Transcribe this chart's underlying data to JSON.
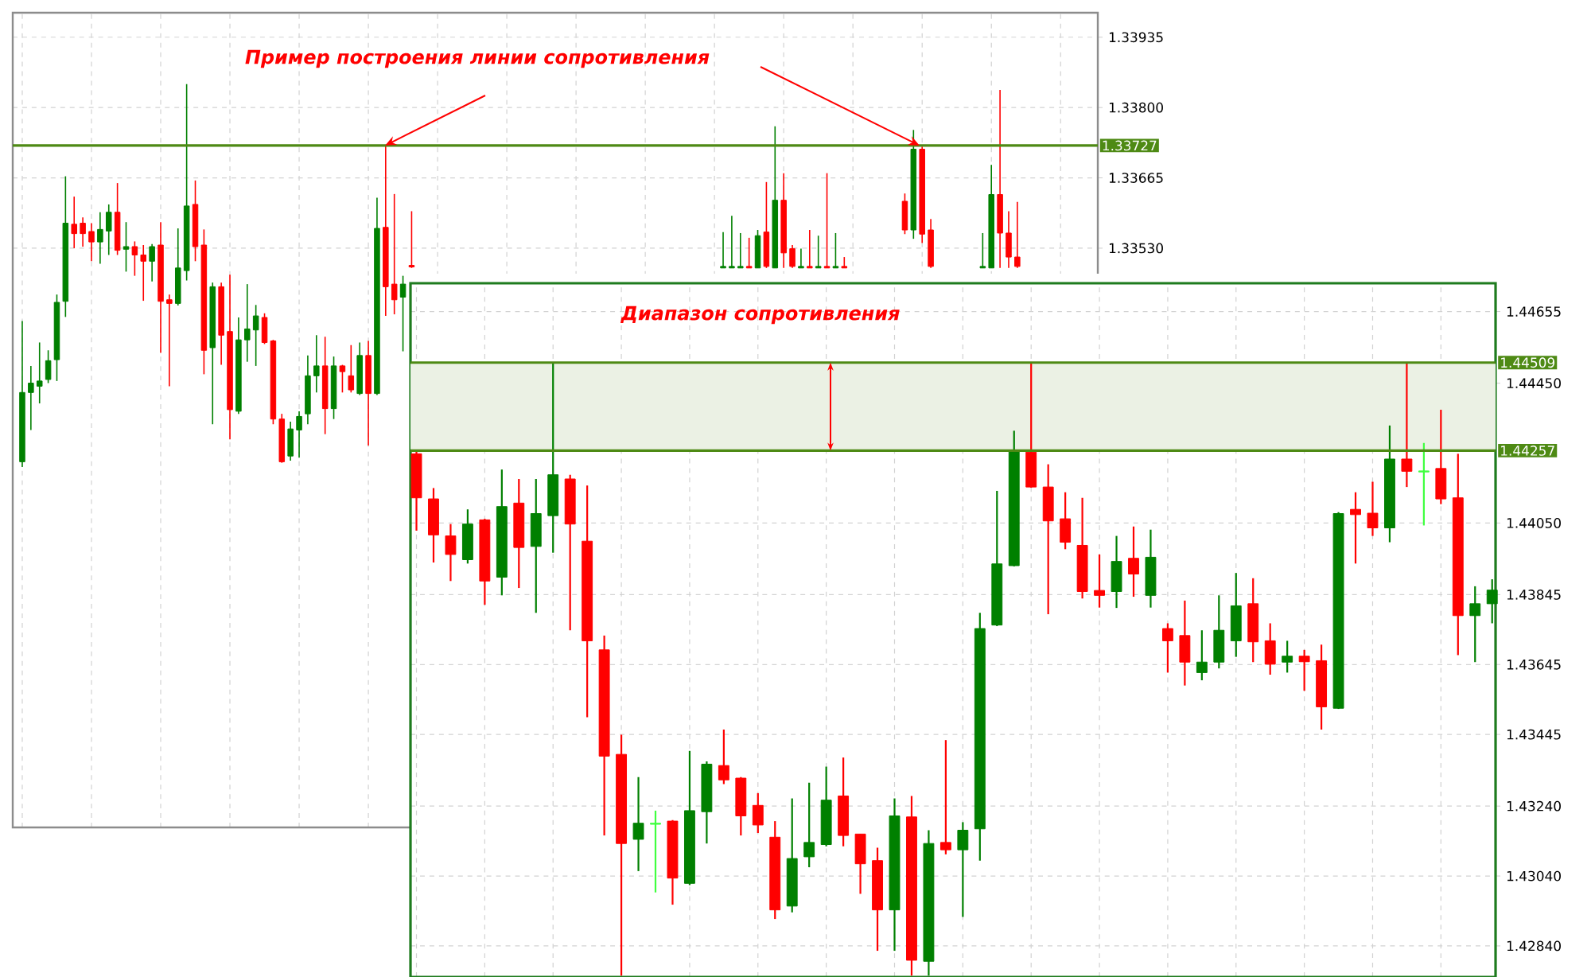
{
  "chart_data": [
    {
      "type": "candlestick",
      "annotations": [
        "Пример построения линии сопротивления"
      ],
      "categories": [
        null,
        null,
        null,
        null,
        null,
        null,
        null,
        null,
        null,
        null,
        null,
        null,
        null,
        null,
        null,
        null,
        null,
        null,
        null,
        null,
        null,
        null,
        null,
        null,
        null,
        null,
        null,
        null,
        null,
        null,
        null,
        null,
        null,
        null,
        null,
        null,
        null,
        null,
        null,
        null,
        null,
        null,
        null,
        null,
        null,
        null,
        null,
        null,
        null,
        null,
        null,
        null,
        null,
        null,
        null,
        null,
        null,
        null,
        null,
        null,
        null,
        null,
        null,
        null,
        null,
        null,
        null,
        null,
        null,
        null,
        null,
        null,
        null,
        null,
        null,
        null,
        null,
        null,
        null,
        null,
        null,
        null,
        null,
        null,
        null,
        null,
        null,
        null,
        null,
        null,
        null,
        null,
        null,
        null,
        null,
        null,
        null,
        null,
        null,
        null,
        null,
        null,
        null,
        null,
        null,
        null,
        null,
        null,
        null,
        null,
        null,
        null,
        null,
        null,
        null,
        null,
        null,
        null,
        null,
        null,
        null,
        null,
        null,
        null,
        null
      ],
      "ohlc": [
        [
          1.3312,
          1.3339,
          1.3311,
          1.33253
        ],
        [
          1.33253,
          1.33304,
          1.33181,
          1.33271
        ],
        [
          1.33265,
          1.33349,
          1.33232,
          1.33275
        ],
        [
          1.33278,
          1.33334,
          1.33271,
          1.33314
        ],
        [
          1.33316,
          1.33441,
          1.33275,
          1.33426
        ],
        [
          1.33428,
          1.33668,
          1.33398,
          1.33578
        ],
        [
          1.33576,
          1.33629,
          1.3353,
          1.33558
        ],
        [
          1.33578,
          1.33589,
          1.33533,
          1.33558
        ],
        [
          1.33562,
          1.33578,
          1.33505,
          1.33542
        ],
        [
          1.33542,
          1.33599,
          1.335,
          1.33566
        ],
        [
          1.33563,
          1.33614,
          1.33517,
          1.33599
        ],
        [
          1.33599,
          1.33655,
          1.33517,
          1.33526
        ],
        [
          1.33528,
          1.3358,
          1.33485,
          1.33533
        ],
        [
          1.33533,
          1.33543,
          1.33477,
          1.33517
        ],
        [
          1.33517,
          1.33536,
          1.33429,
          1.33505
        ],
        [
          1.33505,
          1.33538,
          1.33466,
          1.33533
        ],
        [
          1.33536,
          1.3358,
          1.33329,
          1.33428
        ],
        [
          1.33431,
          1.33441,
          1.33265,
          1.33424
        ],
        [
          1.33424,
          1.33568,
          1.3342,
          1.33492
        ],
        [
          1.33487,
          1.33845,
          1.33468,
          1.33611
        ],
        [
          1.33614,
          1.3366,
          1.33505,
          1.33533
        ],
        [
          1.33536,
          1.33566,
          1.33288,
          1.33334
        ],
        [
          1.33339,
          1.33464,
          1.33192,
          1.33456
        ],
        [
          1.33456,
          1.33464,
          1.33306,
          1.33363
        ],
        [
          1.3337,
          1.33479,
          1.33163,
          1.3322
        ],
        [
          1.33217,
          1.33397,
          1.33212,
          1.33354
        ],
        [
          1.33354,
          1.33461,
          1.33312,
          1.33375
        ],
        [
          1.33373,
          1.33421,
          1.33304,
          1.334
        ],
        [
          1.33397,
          1.33405,
          1.33346,
          1.33349
        ],
        [
          1.33352,
          1.33354,
          1.33192,
          1.33202
        ],
        [
          1.33202,
          1.33212,
          1.33118,
          1.3312
        ],
        [
          1.33131,
          1.33197,
          1.33122,
          1.33183
        ],
        [
          1.33181,
          1.33217,
          1.33128,
          1.33207
        ],
        [
          1.33212,
          1.33324,
          1.33192,
          1.33285
        ],
        [
          1.33285,
          1.33363,
          1.33253,
          1.33304
        ],
        [
          1.33304,
          1.3336,
          1.33173,
          1.33222
        ],
        [
          1.33222,
          1.33322,
          1.33202,
          1.33304
        ],
        [
          1.33304,
          1.33306,
          1.33253,
          1.33293
        ],
        [
          1.33285,
          1.33344,
          1.33253,
          1.33258
        ],
        [
          1.33251,
          1.33349,
          1.33248,
          1.33324
        ],
        [
          1.33324,
          1.33352,
          1.33151,
          1.33251
        ],
        [
          1.33251,
          1.33627,
          1.33248,
          1.33568
        ],
        [
          1.3357,
          1.33727,
          1.334,
          1.33456
        ],
        [
          1.33461,
          1.33634,
          1.33403,
          1.33431
        ],
        [
          1.33436,
          1.33477,
          1.33332,
          1.33461
        ],
        [
          1.33497,
          1.33601,
          1.33492,
          1.33494
        ],
        null,
        null,
        null,
        null,
        null,
        null,
        null,
        null,
        null,
        null,
        null,
        null,
        null,
        null,
        null,
        null,
        null,
        null,
        null,
        null,
        null,
        null,
        null,
        null,
        null,
        null,
        null,
        null,
        null,
        null,
        null,
        null,
        null,
        null,
        null,
        [
          1.33492,
          1.33561,
          1.33492,
          1.33495
        ],
        [
          1.33492,
          1.33592,
          1.33492,
          1.33495
        ],
        [
          1.33492,
          1.33559,
          1.33492,
          1.33495
        ],
        [
          1.33495,
          1.3355,
          1.33492,
          1.33492
        ],
        [
          1.33492,
          1.33565,
          1.33492,
          1.33554
        ],
        [
          1.33561,
          1.33657,
          1.33492,
          1.33495
        ],
        [
          1.33492,
          1.33764,
          1.33492,
          1.33622
        ],
        [
          1.33622,
          1.33674,
          1.33492,
          1.33521
        ],
        [
          1.33529,
          1.33536,
          1.33492,
          1.33495
        ],
        [
          1.33492,
          1.33529,
          1.33492,
          1.33495
        ],
        [
          1.33495,
          1.33565,
          1.33492,
          1.33492
        ],
        [
          1.33492,
          1.33554,
          1.33492,
          1.33495
        ],
        [
          1.33495,
          1.33674,
          1.33492,
          1.33492
        ],
        [
          1.33492,
          1.33559,
          1.33492,
          1.33495
        ],
        [
          1.33495,
          1.33513,
          1.33492,
          1.33492
        ],
        null,
        null,
        null,
        null,
        null,
        null,
        [
          1.3362,
          1.33635,
          1.33557,
          1.33565
        ],
        [
          1.33565,
          1.33757,
          1.33548,
          1.3372
        ],
        [
          1.3372,
          1.33725,
          1.3354,
          1.33557
        ],
        [
          1.33565,
          1.33586,
          1.33492,
          1.33495
        ],
        null,
        null,
        null,
        null,
        null,
        [
          1.33492,
          1.33559,
          1.33492,
          1.33495
        ],
        [
          1.33492,
          1.3369,
          1.33492,
          1.33633
        ],
        [
          1.33633,
          1.33834,
          1.33492,
          1.33559
        ],
        [
          1.33559,
          1.33601,
          1.33492,
          1.33513
        ],
        [
          1.33513,
          1.33619,
          1.33492,
          1.33495
        ],
        null,
        null,
        null,
        null,
        null,
        null,
        null,
        null,
        null
      ],
      "colors": [
        "#008000",
        "#008000",
        "#008000",
        "#008000",
        "#008000",
        "#008000",
        "#ff0000",
        "#ff0000",
        "#ff0000",
        "#008000",
        "#008000",
        "#ff0000",
        "#008000",
        "#ff0000",
        "#ff0000",
        "#008000",
        "#ff0000",
        "#ff0000",
        "#008000",
        "#008000",
        "#ff0000",
        "#ff0000",
        "#008000",
        "#ff0000",
        "#ff0000",
        "#008000",
        "#008000",
        "#008000",
        "#ff0000",
        "#ff0000",
        "#ff0000",
        "#008000",
        "#008000",
        "#008000",
        "#008000",
        "#ff0000",
        "#008000",
        "#ff0000",
        "#ff0000",
        "#008000",
        "#ff0000",
        "#008000",
        "#ff0000",
        "#ff0000",
        "#008000",
        "#ff0000",
        null,
        null,
        null,
        null,
        null,
        null,
        null,
        null,
        null,
        null,
        null,
        null,
        null,
        null,
        null,
        null,
        null,
        null,
        null,
        null,
        null,
        null,
        null,
        null,
        null,
        null,
        null,
        null,
        null,
        null,
        null,
        null,
        null,
        null,
        null,
        "#008000",
        "#008000",
        "#008000",
        "#ff0000",
        "#008000",
        "#ff0000",
        "#008000",
        "#ff0000",
        "#ff0000",
        "#008000",
        "#ff0000",
        "#008000",
        "#ff0000",
        "#008000",
        "#ff0000",
        null,
        null,
        null,
        null,
        null,
        null,
        "#ff0000",
        "#008000",
        "#ff0000",
        "#ff0000",
        null,
        null,
        null,
        null,
        null,
        "#008000",
        "#008000",
        "#ff0000",
        "#ff0000",
        "#ff0000",
        null,
        null,
        null,
        null,
        null,
        null,
        null,
        null,
        null
      ],
      "ylim": [
        1.32418,
        1.33982
      ],
      "yticks": [
        1.33935,
        {
          "value": 1.338,
          "label": "1.33800"
        },
        1.33665,
        {
          "value": 1.3353,
          "label": "1.33530"
        }
      ],
      "ref_lines": [
        {
          "axis": "y",
          "value": 1.33727,
          "label": "1.33727",
          "color": "#4e8a14"
        }
      ],
      "grid": true,
      "tick_labels": "y"
    },
    {
      "type": "candlestick",
      "categories": [
        null,
        null,
        null,
        null,
        null,
        null,
        null,
        null,
        null,
        null,
        null,
        null,
        null,
        null,
        null,
        null,
        null,
        null,
        null,
        null,
        null,
        null,
        null,
        null,
        null,
        null,
        null,
        null,
        null,
        null,
        null,
        null,
        null,
        null,
        null,
        null,
        null,
        null,
        null,
        null,
        null,
        null,
        null,
        null,
        null,
        null,
        null,
        null,
        null,
        null,
        null,
        null,
        null,
        null,
        null,
        null,
        null,
        null,
        null,
        null,
        null,
        null,
        null,
        null
      ],
      "ohlc": [
        [
          1.44248,
          1.44256,
          1.44028,
          1.44122
        ],
        [
          1.44119,
          1.4415,
          1.43937,
          1.44016
        ],
        [
          1.44013,
          1.44047,
          1.43884,
          1.4396
        ],
        [
          1.43945,
          1.44089,
          1.43934,
          1.44047
        ],
        [
          1.44059,
          1.44062,
          1.43816,
          1.43884
        ],
        [
          1.43895,
          1.44203,
          1.43843,
          1.44097
        ],
        [
          1.44107,
          1.44176,
          1.43864,
          1.4398
        ],
        [
          1.43983,
          1.44176,
          1.43793,
          1.44077
        ],
        [
          1.44071,
          1.44509,
          1.43965,
          1.44188
        ],
        [
          1.44176,
          1.44188,
          1.43743,
          1.44047
        ],
        [
          1.43998,
          1.44157,
          1.43494,
          1.43713
        ],
        [
          1.43687,
          1.43728,
          1.43156,
          1.43383
        ],
        [
          1.43388,
          1.43444,
          1.42755,
          1.43133
        ],
        [
          1.43145,
          1.43323,
          1.43054,
          1.43191
        ],
        [
          1.43188,
          1.43227,
          1.42993,
          1.43191
        ],
        [
          1.43197,
          1.432,
          1.42958,
          1.43034
        ],
        [
          1.43019,
          1.43398,
          1.43014,
          1.43227
        ],
        [
          1.43224,
          1.43368,
          1.43133,
          1.4336
        ],
        [
          1.43356,
          1.43459,
          1.43303,
          1.43315
        ],
        [
          1.4332,
          1.43323,
          1.43156,
          1.43212
        ],
        [
          1.43242,
          1.43277,
          1.43163,
          1.43186
        ],
        [
          1.43151,
          1.43197,
          1.42917,
          1.42943
        ],
        [
          1.42954,
          1.43262,
          1.42936,
          1.4309
        ],
        [
          1.43095,
          1.43307,
          1.43065,
          1.43136
        ],
        [
          1.4313,
          1.43353,
          1.43125,
          1.43257
        ],
        [
          1.43269,
          1.43379,
          1.43125,
          1.43156
        ],
        [
          1.4316,
          1.4316,
          1.42989,
          1.43075
        ],
        [
          1.43084,
          1.43121,
          1.42826,
          1.42943
        ],
        [
          1.42943,
          1.43262,
          1.42826,
          1.43212
        ],
        [
          1.43209,
          1.43269,
          1.42755,
          1.42799
        ],
        [
          1.42796,
          1.43171,
          1.42755,
          1.43133
        ],
        [
          1.43136,
          1.43429,
          1.43102,
          1.43115
        ],
        [
          1.43115,
          1.43194,
          1.42923,
          1.43171
        ],
        [
          1.43175,
          1.43793,
          1.43084,
          1.43748
        ],
        [
          1.43758,
          1.44142,
          1.43755,
          1.43933
        ],
        [
          1.43928,
          1.44314,
          1.43926,
          1.44256
        ],
        [
          1.44253,
          1.44509,
          1.44151,
          1.44153
        ],
        [
          1.44153,
          1.44218,
          1.43789,
          1.44056
        ],
        [
          1.44062,
          1.44138,
          1.43975,
          1.43995
        ],
        [
          1.43986,
          1.44122,
          1.43834,
          1.43854
        ],
        [
          1.43857,
          1.4396,
          1.43808,
          1.43843
        ],
        [
          1.43854,
          1.44013,
          1.43807,
          1.4394
        ],
        [
          1.43949,
          1.4404,
          1.43839,
          1.43904
        ],
        [
          1.43843,
          1.44031,
          1.43808,
          1.43952
        ],
        [
          1.43748,
          1.43763,
          1.43622,
          1.43713
        ],
        [
          1.43728,
          1.43828,
          1.43585,
          1.43652
        ],
        [
          1.43622,
          1.43743,
          1.436,
          1.43652
        ],
        [
          1.43652,
          1.43843,
          1.43634,
          1.43743
        ],
        [
          1.43713,
          1.43907,
          1.43667,
          1.43813
        ],
        [
          1.43819,
          1.43892,
          1.43652,
          1.4371
        ],
        [
          1.43713,
          1.43763,
          1.43616,
          1.43646
        ],
        [
          1.43652,
          1.43713,
          1.43622,
          1.43669
        ],
        [
          1.43669,
          1.43687,
          1.4357,
          1.43653
        ],
        [
          1.43656,
          1.43702,
          1.43459,
          1.43524
        ],
        [
          1.4352,
          1.44081,
          1.43518,
          1.44077
        ],
        [
          1.44089,
          1.44138,
          1.43934,
          1.44074
        ],
        [
          1.44078,
          1.44168,
          1.44013,
          1.44036
        ],
        [
          1.44036,
          1.44329,
          1.43995,
          1.44233
        ],
        [
          1.44233,
          1.44509,
          1.44153,
          1.44198
        ],
        [
          1.44196,
          1.44279,
          1.44043,
          1.44199
        ],
        [
          1.44206,
          1.44374,
          1.44104,
          1.44119
        ],
        [
          1.44122,
          1.44248,
          1.43672,
          1.43785
        ],
        [
          1.43785,
          1.43869,
          1.43652,
          1.43819
        ],
        [
          1.43819,
          1.43889,
          1.43763,
          1.43858
        ]
      ],
      "colors": [
        "#ff0000",
        "#ff0000",
        "#ff0000",
        "#008000",
        "#ff0000",
        "#008000",
        "#ff0000",
        "#008000",
        "#008000",
        "#ff0000",
        "#ff0000",
        "#ff0000",
        "#ff0000",
        "#008000",
        "#40ff40",
        "#ff0000",
        "#008000",
        "#008000",
        "#ff0000",
        "#ff0000",
        "#ff0000",
        "#ff0000",
        "#008000",
        "#008000",
        "#008000",
        "#ff0000",
        "#ff0000",
        "#ff0000",
        "#008000",
        "#ff0000",
        "#008000",
        "#ff0000",
        "#008000",
        "#008000",
        "#008000",
        "#008000",
        "#ff0000",
        "#ff0000",
        "#ff0000",
        "#ff0000",
        "#ff0000",
        "#008000",
        "#ff0000",
        "#008000",
        "#ff0000",
        "#ff0000",
        "#008000",
        "#008000",
        "#008000",
        "#ff0000",
        "#ff0000",
        "#008000",
        "#ff0000",
        "#ff0000",
        "#008000",
        "#ff0000",
        "#ff0000",
        "#008000",
        "#ff0000",
        "#40ff40",
        "#ff0000",
        "#ff0000",
        "#008000",
        "#008000"
      ],
      "ylim": [
        1.42751,
        1.44736
      ],
      "yticks": [
        1.44655,
        {
          "value": 1.4445,
          "label": "1.44450"
        },
        {
          "value": 1.4405,
          "label": "1.44050"
        },
        1.43845,
        1.43645,
        1.43445,
        {
          "value": 1.4324,
          "label": "1.43240"
        },
        {
          "value": 1.4304,
          "label": "1.43040"
        },
        {
          "value": 1.4284,
          "label": "1.42840"
        }
      ],
      "ref_lines": [
        {
          "axis": "y",
          "value": 1.44509,
          "label": "1.44509",
          "color": "#4e8a14"
        },
        {
          "axis": "y",
          "value": 1.44257,
          "label": "1.44257",
          "color": "#4e8a14"
        }
      ],
      "bands": [
        {
          "axis": "y",
          "from": 1.44257,
          "to": 1.44509,
          "label": "Диапазон сопротивления",
          "color": "#ebf1e4"
        }
      ],
      "grid": true,
      "tick_labels": "y"
    }
  ]
}
